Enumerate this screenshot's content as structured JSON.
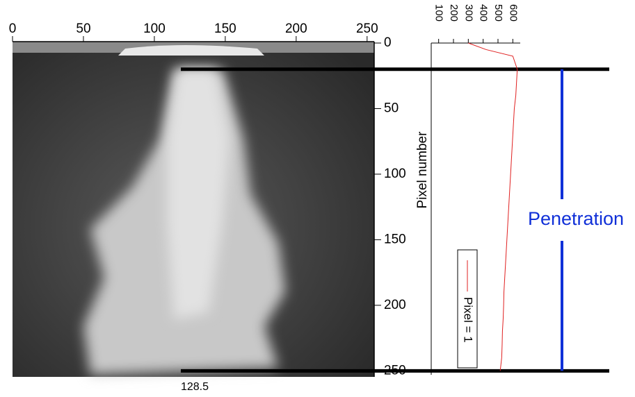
{
  "chart_data": [
    {
      "type": "image",
      "xlim": [
        0,
        255
      ],
      "xticks": [
        0,
        50,
        100,
        150,
        200,
        250
      ],
      "ylim": [
        0,
        253
      ],
      "yticks": [
        0,
        50,
        100,
        150,
        200,
        250
      ],
      "ylabel": "Pixel number",
      "annotation": "128.5",
      "penetration": {
        "label": "Penetration",
        "from": 20,
        "to": 250,
        "color": "#1030d8"
      }
    },
    {
      "type": "line",
      "xlim": [
        50,
        650
      ],
      "xticks": [
        100,
        200,
        300,
        400,
        500,
        600
      ],
      "y": [
        0,
        5,
        10,
        20,
        30,
        40,
        50,
        60,
        70,
        80,
        90,
        100,
        110,
        120,
        130,
        140,
        150,
        160,
        170,
        180,
        190,
        200,
        210,
        220,
        230,
        240,
        250
      ],
      "series": [
        {
          "name": "Pixel = 1",
          "color": "#e02020",
          "values": [
            300,
            420,
            600,
            630,
            625,
            620,
            610,
            605,
            600,
            595,
            590,
            585,
            580,
            575,
            570,
            565,
            560,
            555,
            550,
            545,
            540,
            538,
            535,
            530,
            528,
            525,
            515
          ]
        }
      ]
    }
  ]
}
